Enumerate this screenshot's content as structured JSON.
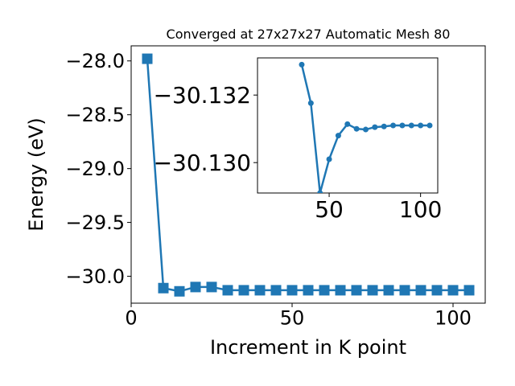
{
  "chart_data": [
    {
      "type": "line",
      "title": "Converged at 27x27x27 Automatic Mesh 80",
      "xlabel": "Increment in K point",
      "ylabel": "Energy (eV)",
      "x": [
        5,
        10,
        15,
        20,
        25,
        30,
        35,
        40,
        45,
        50,
        55,
        60,
        65,
        70,
        75,
        80,
        85,
        90,
        95,
        100,
        105
      ],
      "series": [
        {
          "color": "#1f77b4",
          "marker": "square",
          "values": [
            -27.98,
            -30.11,
            -30.14,
            -30.1,
            -30.1,
            -30.13,
            -30.13,
            -30.13,
            -30.13,
            -30.13,
            -30.13,
            -30.13,
            -30.13,
            -30.13,
            -30.13,
            -30.13,
            -30.13,
            -30.13,
            -30.13,
            -30.13,
            -30.13
          ]
        }
      ],
      "xlim": [
        0,
        110
      ],
      "xticks": [
        0,
        50,
        100
      ],
      "ylim": [
        -30.25,
        -27.86
      ],
      "yticks": [
        {
          "value": -30.0,
          "label": "−30.0"
        },
        {
          "value": -29.5,
          "label": "−29.5"
        },
        {
          "value": -29.0,
          "label": "−29.0"
        },
        {
          "value": -28.5,
          "label": "−28.5"
        },
        {
          "value": -28.0,
          "label": "−28.0"
        }
      ]
    },
    {
      "type": "line",
      "x": [
        35,
        40,
        45,
        50,
        55,
        60,
        65,
        70,
        75,
        80,
        85,
        90,
        95,
        100,
        105
      ],
      "series": [
        {
          "color": "#1f77b4",
          "marker": "circle",
          "values": [
            -30.1329,
            -30.13176,
            -30.1291,
            -30.1301,
            -30.1308,
            -30.13114,
            -30.131,
            -30.13098,
            -30.13105,
            -30.13107,
            -30.1311,
            -30.1311,
            -30.1311,
            -30.1311,
            -30.1311
          ]
        }
      ],
      "xlim": [
        10.8,
        109.4
      ],
      "xticks": [
        50,
        100
      ],
      "ylim": [
        -30.1291,
        -30.1331
      ],
      "yticks": [
        {
          "value": -30.13,
          "label": "−30.130"
        },
        {
          "value": -30.132,
          "label": "−30.132"
        }
      ]
    }
  ]
}
